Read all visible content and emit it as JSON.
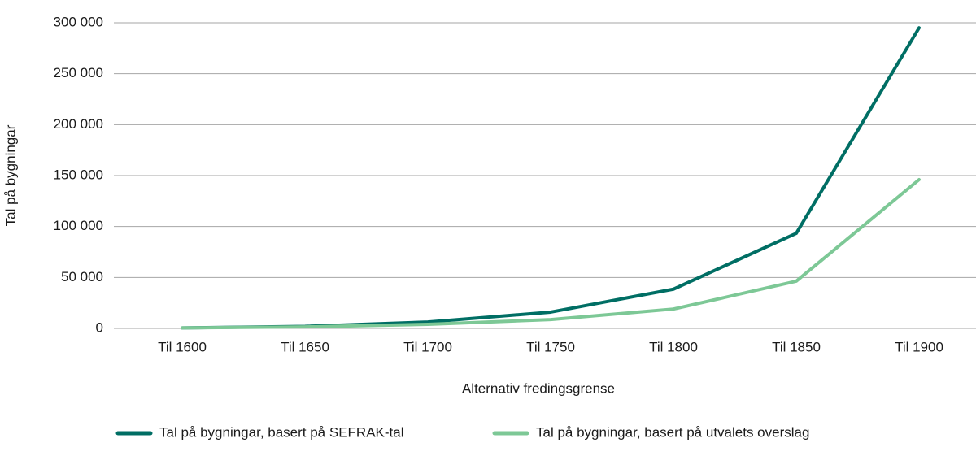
{
  "chart_data": {
    "type": "line",
    "x_label": "Alternativ fredingsgrense",
    "y_label": "Tal på bygningar",
    "categories": [
      "Til 1600",
      "Til 1650",
      "Til 1700",
      "Til 1750",
      "Til 1800",
      "Til 1850",
      "Til 1900"
    ],
    "series": [
      {
        "name": "Tal på bygningar, basert på SEFRAK-tal",
        "color": "#006e64",
        "values": [
          500,
          2000,
          6300,
          16000,
          38500,
          93300,
          295000
        ]
      },
      {
        "name": "Tal på bygningar, basert på utvalets overslag",
        "color": "#7dc896",
        "values": [
          500,
          1500,
          4000,
          8700,
          19000,
          46300,
          146000
        ]
      }
    ],
    "ylim": [
      0,
      300000
    ],
    "yticks": [
      0,
      {
        "value": 50000,
        "label": "50 000"
      },
      {
        "value": 100000,
        "label": "100 000"
      },
      {
        "value": 150000,
        "label": "150 000"
      },
      {
        "value": 200000,
        "label": "200 000"
      },
      {
        "value": 250000,
        "label": "250 000"
      },
      {
        "value": 300000,
        "label": "300 000"
      }
    ],
    "grid": true,
    "legend": "bottom"
  }
}
